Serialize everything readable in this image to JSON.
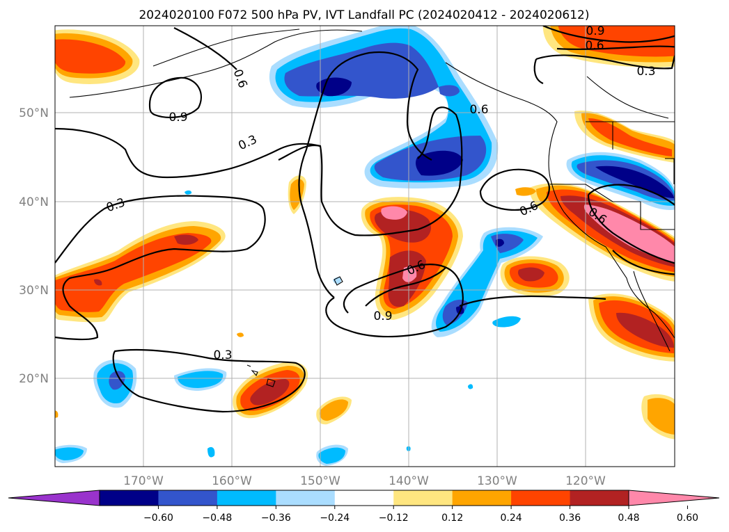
{
  "title": "2024020100 F072 500 hPa PV, IVT Landfall PC (2024020412 - 2024020612)",
  "lon_labels": [
    "170°W",
    "160°W",
    "150°W",
    "140°W",
    "130°W",
    "120°W"
  ],
  "lat_labels": [
    "50°N",
    "40°N",
    "30°N",
    "20°N"
  ],
  "contour_labels": [
    "0.9",
    "0.6",
    "0.3",
    "0.9",
    "0.3",
    "0.6",
    "0.3",
    "0.6",
    "0.6",
    "0.6",
    "0.9",
    "0.3",
    "0.6",
    "0.6",
    "0.3"
  ],
  "colorbar": {
    "colors": [
      "#9933cc",
      "#000088",
      "#3355cc",
      "#00bbff",
      "#aaddff",
      "#ffffff",
      "#ffe680",
      "#ffa500",
      "#ff4400",
      "#b22222",
      "#ff88aa"
    ],
    "ticks": [
      "−0.60",
      "−0.48",
      "−0.36",
      "−0.24",
      "−0.12",
      "0.12",
      "0.24",
      "0.36",
      "0.48",
      "0.60"
    ]
  },
  "colors": {
    "cool_strong": "#000088",
    "cool_mid": "#3355cc",
    "cool_light": "#00bbff",
    "cool_pale": "#aaddff",
    "warm_pale": "#ffe680",
    "warm_light": "#ffa500",
    "warm_mid": "#ff4400",
    "warm_strong": "#b22222",
    "warm_max": "#ff88aa"
  }
}
